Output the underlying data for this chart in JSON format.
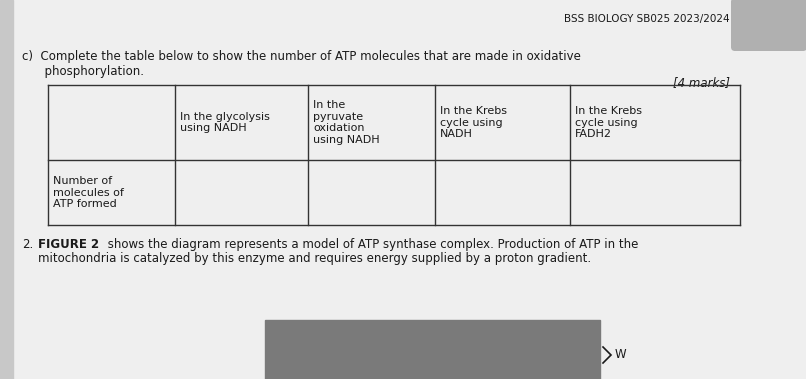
{
  "bg_color": "#efefef",
  "left_strip_color": "#c8c8c8",
  "corner_box_color": "#b0b0b0",
  "header_text": "BSS BIOLOGY SB025 2023/2024",
  "question_c_line1": "c)  Complete the table below to show the number of ATP molecules that are made in oxidative",
  "question_c_line2": "      phosphorylation.",
  "marks_text": "[4 marks]",
  "table_headers_col0": "",
  "table_headers_col1": "In the glycolysis\nusing NADH",
  "table_headers_col2": "In the\npyruvate\noxidation\nusing NADH",
  "table_headers_col3": "In the Krebs\ncycle using\nNADH",
  "table_headers_col4": "In the Krebs\ncycle using\nFADH2",
  "table_row_label": "Number of\nmolecules of\nATP formed",
  "q2_number": "2.",
  "q2_bold": "FIGURE 2",
  "q2_rest_line1": " shows the diagram represents a model of ATP synthase complex. Production of ATP in the",
  "q2_rest_line2": "mitochondria is catalyzed by this enzyme and requires energy supplied by a proton gradient.",
  "gray_box_color": "#7a7a7a",
  "w_label": "W",
  "text_color": "#1a1a1a",
  "line_color": "#333333",
  "font_size": 8.5,
  "font_size_small": 8.0
}
